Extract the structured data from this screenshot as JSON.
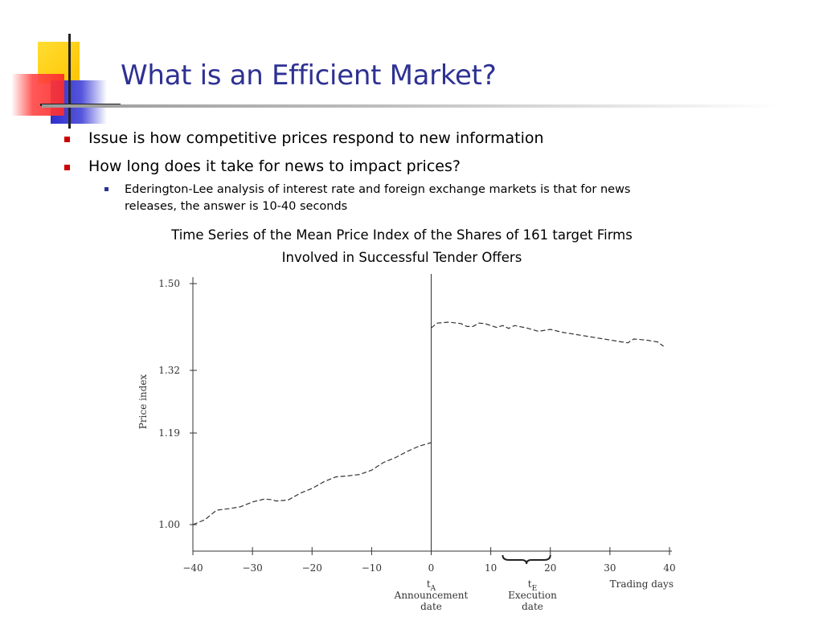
{
  "slide": {
    "title": "What is an Efficient Market?",
    "bullets": [
      "Issue is how competitive prices respond to new information",
      "How long does it take for news to impact prices?"
    ],
    "sub_bullet_lines": [
      "Ederington-Lee analysis of interest rate and foreign exchange markets is that for news",
      "releases, the answer is 10-40 seconds"
    ],
    "chart_title_lines": [
      "Time Series of the Mean Price Index of the Shares of 161 target Firms",
      "Involved in Successful Tender Offers"
    ]
  },
  "colors": {
    "title": "#2e3192",
    "bullet": "#cc0000",
    "logo_yellow": "#ffcc00",
    "logo_blue": "#3333cc",
    "logo_red": "#ff3333"
  },
  "chart_data": {
    "type": "line",
    "title": "Time Series of the Mean Price Index of the Shares of 161 target Firms Involved in Successful Tender Offers",
    "xlabel": "Trading days",
    "ylabel": "Price index",
    "xlim": [
      -40,
      40
    ],
    "xticks": [
      -40,
      -30,
      -20,
      -10,
      0,
      10,
      20,
      30,
      40
    ],
    "yticks": [
      1.0,
      1.19,
      1.32,
      1.5
    ],
    "ytick_labels": [
      "1.00",
      "1.19",
      "1.32",
      "1.50"
    ],
    "grid": false,
    "line_style": "dashed",
    "series": [
      {
        "name": "",
        "segments": [
          {
            "x": [
              -40,
              -38,
              -36,
              -34,
              -32,
              -30,
              -28,
              -27,
              -26,
              -24,
              -22,
              -20,
              -18,
              -16,
              -14,
              -12,
              -10,
              -8,
              -6,
              -4,
              -2,
              0
            ],
            "y": [
              1.0,
              1.01,
              1.03,
              1.033,
              1.037,
              1.047,
              1.053,
              1.052,
              1.049,
              1.051,
              1.065,
              1.075,
              1.089,
              1.099,
              1.101,
              1.104,
              1.113,
              1.129,
              1.139,
              1.152,
              1.163,
              1.17
            ]
          },
          {
            "x": [
              0,
              1,
              3,
              5,
              6,
              7,
              8,
              9,
              11,
              12,
              13,
              14,
              16,
              18,
              20,
              22,
              24,
              26,
              28,
              30,
              32,
              33,
              34,
              36,
              38,
              39
            ],
            "y": [
              1.408,
              1.418,
              1.42,
              1.417,
              1.411,
              1.411,
              1.418,
              1.417,
              1.409,
              1.413,
              1.407,
              1.413,
              1.408,
              1.401,
              1.405,
              1.399,
              1.395,
              1.391,
              1.387,
              1.383,
              1.379,
              1.377,
              1.385,
              1.383,
              1.379,
              1.37
            ]
          }
        ]
      }
    ],
    "vline_x": 0,
    "annotations": {
      "announcement": {
        "x": 0,
        "symbol": "t",
        "sub": "A",
        "lines": [
          "Announcement",
          "date"
        ]
      },
      "execution": {
        "x": 17,
        "symbol": "t",
        "sub": "E",
        "lines": [
          "Execution",
          "date"
        ],
        "brace_from": 12,
        "brace_to": 20
      }
    }
  }
}
